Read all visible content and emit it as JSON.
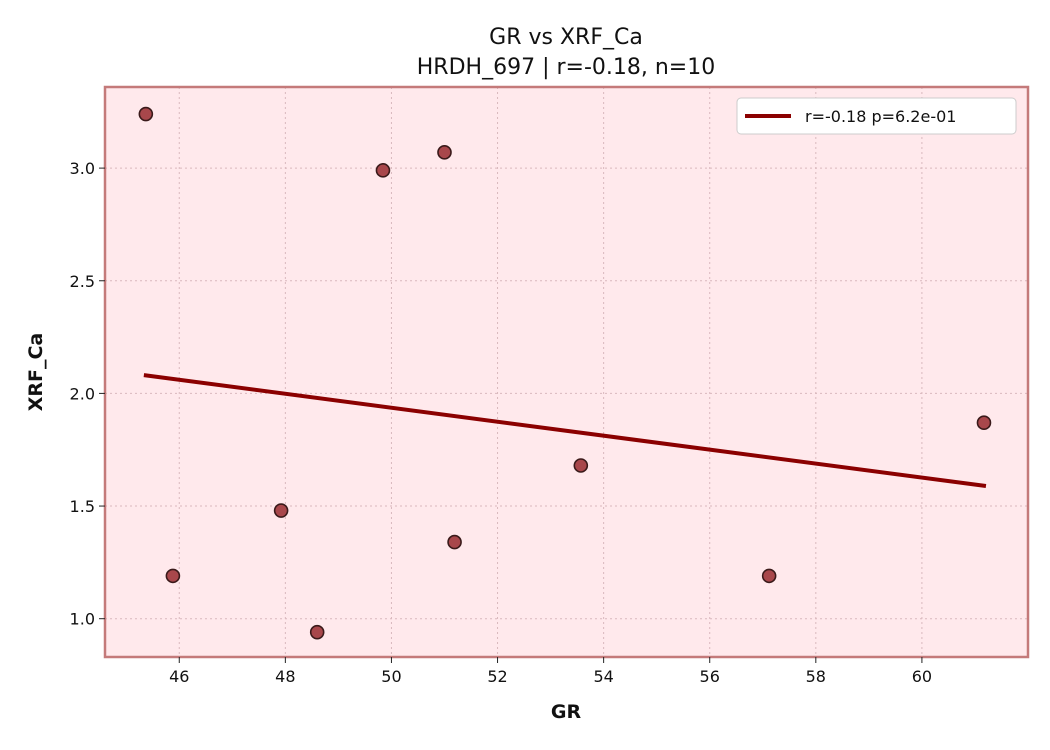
{
  "chart_data": {
    "type": "scatter",
    "title": "GR vs XRF_Ca",
    "subtitle": "HRDH_697 | r=-0.18, n=10",
    "xlabel": "GR",
    "ylabel": "XRF_Ca",
    "xlim": [
      44.6,
      62.0
    ],
    "ylim": [
      0.83,
      3.36
    ],
    "xticks": [
      46,
      48,
      50,
      52,
      54,
      56,
      58,
      60
    ],
    "yticks": [
      1.0,
      1.5,
      2.0,
      2.5,
      3.0
    ],
    "grid": true,
    "legend_position": "top-right",
    "points": [
      {
        "x": 45.37,
        "y": 3.24
      },
      {
        "x": 45.88,
        "y": 1.19
      },
      {
        "x": 47.92,
        "y": 1.48
      },
      {
        "x": 48.6,
        "y": 0.94
      },
      {
        "x": 49.84,
        "y": 2.99
      },
      {
        "x": 51.0,
        "y": 3.07
      },
      {
        "x": 51.19,
        "y": 1.34
      },
      {
        "x": 53.57,
        "y": 1.68
      },
      {
        "x": 57.12,
        "y": 1.19
      },
      {
        "x": 61.17,
        "y": 1.87
      }
    ],
    "fit_line": {
      "label": "r=-0.18  p=6.2e-01",
      "x": [
        45.37,
        61.17
      ],
      "y": [
        2.08,
        1.59
      ]
    },
    "colors": {
      "plot_background": "#ffe9ec",
      "frame": "#c47a7a",
      "point_fill": "#a8474b",
      "point_edge": "#3a1a1a",
      "fit_line": "#8b0000",
      "grid": "#d9b8bd"
    }
  }
}
